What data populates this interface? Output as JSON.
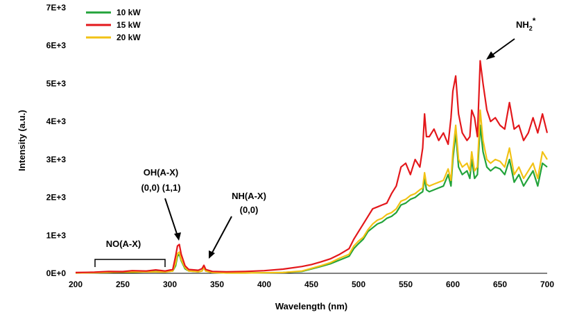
{
  "chart_data": {
    "type": "line",
    "title": "",
    "xlabel": "Wavelength (nm)",
    "ylabel": "Intensity (a.u.)",
    "xlim": [
      200,
      700
    ],
    "ylim": [
      0,
      7000
    ],
    "x_ticks": [
      "200",
      "250",
      "300",
      "350",
      "400",
      "450",
      "500",
      "550",
      "600",
      "650",
      "700"
    ],
    "y_ticks": [
      "0E+0",
      "1E+3",
      "2E+3",
      "3E+3",
      "4E+3",
      "5E+3",
      "6E+3",
      "7E+3"
    ],
    "grid": false,
    "legend": "top-left",
    "series": [
      {
        "name": "10 kW",
        "color": "#22a33a",
        "points": [
          [
            200,
            10
          ],
          [
            220,
            15
          ],
          [
            240,
            30
          ],
          [
            260,
            30
          ],
          [
            280,
            45
          ],
          [
            295,
            40
          ],
          [
            303,
            60
          ],
          [
            306,
            200
          ],
          [
            308,
            450
          ],
          [
            310,
            500
          ],
          [
            312,
            330
          ],
          [
            316,
            120
          ],
          [
            320,
            60
          ],
          [
            330,
            40
          ],
          [
            334,
            60
          ],
          [
            336,
            150
          ],
          [
            338,
            60
          ],
          [
            345,
            20
          ],
          [
            360,
            10
          ],
          [
            380,
            10
          ],
          [
            400,
            15
          ],
          [
            420,
            20
          ],
          [
            440,
            50
          ],
          [
            460,
            180
          ],
          [
            470,
            250
          ],
          [
            480,
            350
          ],
          [
            490,
            450
          ],
          [
            495,
            650
          ],
          [
            500,
            780
          ],
          [
            505,
            900
          ],
          [
            510,
            1100
          ],
          [
            515,
            1200
          ],
          [
            520,
            1300
          ],
          [
            525,
            1350
          ],
          [
            530,
            1450
          ],
          [
            535,
            1500
          ],
          [
            540,
            1600
          ],
          [
            545,
            1800
          ],
          [
            550,
            1850
          ],
          [
            555,
            1950
          ],
          [
            560,
            2000
          ],
          [
            565,
            2100
          ],
          [
            568,
            2150
          ],
          [
            570,
            2500
          ],
          [
            572,
            2200
          ],
          [
            575,
            2150
          ],
          [
            580,
            2200
          ],
          [
            585,
            2250
          ],
          [
            590,
            2300
          ],
          [
            595,
            2600
          ],
          [
            598,
            2300
          ],
          [
            600,
            3000
          ],
          [
            603,
            3700
          ],
          [
            606,
            2800
          ],
          [
            610,
            2600
          ],
          [
            615,
            2700
          ],
          [
            618,
            2500
          ],
          [
            620,
            3000
          ],
          [
            623,
            2500
          ],
          [
            626,
            2600
          ],
          [
            629,
            3900
          ],
          [
            632,
            3200
          ],
          [
            636,
            2800
          ],
          [
            640,
            2700
          ],
          [
            645,
            2800
          ],
          [
            650,
            2750
          ],
          [
            655,
            2600
          ],
          [
            660,
            3000
          ],
          [
            665,
            2400
          ],
          [
            670,
            2600
          ],
          [
            675,
            2300
          ],
          [
            680,
            2500
          ],
          [
            685,
            2700
          ],
          [
            690,
            2300
          ],
          [
            695,
            2900
          ],
          [
            700,
            2800
          ]
        ]
      },
      {
        "name": "15 kW",
        "color": "#e3171b",
        "points": [
          [
            200,
            20
          ],
          [
            220,
            30
          ],
          [
            235,
            50
          ],
          [
            250,
            45
          ],
          [
            260,
            70
          ],
          [
            275,
            60
          ],
          [
            285,
            90
          ],
          [
            295,
            60
          ],
          [
            303,
            100
          ],
          [
            306,
            450
          ],
          [
            308,
            720
          ],
          [
            310,
            760
          ],
          [
            312,
            500
          ],
          [
            316,
            200
          ],
          [
            320,
            100
          ],
          [
            330,
            80
          ],
          [
            334,
            120
          ],
          [
            336,
            210
          ],
          [
            338,
            100
          ],
          [
            345,
            50
          ],
          [
            360,
            40
          ],
          [
            380,
            50
          ],
          [
            400,
            70
          ],
          [
            420,
            110
          ],
          [
            440,
            180
          ],
          [
            450,
            230
          ],
          [
            460,
            300
          ],
          [
            470,
            380
          ],
          [
            480,
            500
          ],
          [
            490,
            650
          ],
          [
            495,
            900
          ],
          [
            500,
            1100
          ],
          [
            505,
            1300
          ],
          [
            510,
            1500
          ],
          [
            515,
            1700
          ],
          [
            520,
            1750
          ],
          [
            525,
            1800
          ],
          [
            530,
            1850
          ],
          [
            535,
            2100
          ],
          [
            540,
            2300
          ],
          [
            545,
            2800
          ],
          [
            550,
            2900
          ],
          [
            555,
            2600
          ],
          [
            560,
            3000
          ],
          [
            565,
            2800
          ],
          [
            568,
            3300
          ],
          [
            570,
            4200
          ],
          [
            572,
            3600
          ],
          [
            575,
            3600
          ],
          [
            580,
            3800
          ],
          [
            585,
            3500
          ],
          [
            590,
            3700
          ],
          [
            595,
            3400
          ],
          [
            598,
            4100
          ],
          [
            600,
            4800
          ],
          [
            603,
            5200
          ],
          [
            606,
            4200
          ],
          [
            610,
            3700
          ],
          [
            615,
            3500
          ],
          [
            618,
            3600
          ],
          [
            620,
            4300
          ],
          [
            623,
            4100
          ],
          [
            626,
            3600
          ],
          [
            629,
            5600
          ],
          [
            632,
            5000
          ],
          [
            636,
            4300
          ],
          [
            640,
            4000
          ],
          [
            645,
            4100
          ],
          [
            650,
            3900
          ],
          [
            655,
            3800
          ],
          [
            660,
            4500
          ],
          [
            665,
            3800
          ],
          [
            670,
            3900
          ],
          [
            675,
            3500
          ],
          [
            680,
            3700
          ],
          [
            685,
            4100
          ],
          [
            690,
            3700
          ],
          [
            695,
            4200
          ],
          [
            700,
            3700
          ]
        ]
      },
      {
        "name": "20 kW",
        "color": "#f2c214",
        "points": [
          [
            200,
            10
          ],
          [
            220,
            15
          ],
          [
            240,
            30
          ],
          [
            260,
            35
          ],
          [
            280,
            40
          ],
          [
            295,
            35
          ],
          [
            303,
            60
          ],
          [
            306,
            260
          ],
          [
            308,
            520
          ],
          [
            310,
            560
          ],
          [
            312,
            360
          ],
          [
            316,
            150
          ],
          [
            320,
            60
          ],
          [
            330,
            40
          ],
          [
            334,
            60
          ],
          [
            336,
            160
          ],
          [
            338,
            60
          ],
          [
            345,
            20
          ],
          [
            360,
            10
          ],
          [
            380,
            10
          ],
          [
            400,
            15
          ],
          [
            420,
            20
          ],
          [
            440,
            60
          ],
          [
            460,
            200
          ],
          [
            470,
            280
          ],
          [
            480,
            400
          ],
          [
            490,
            500
          ],
          [
            495,
            720
          ],
          [
            500,
            850
          ],
          [
            505,
            950
          ],
          [
            510,
            1150
          ],
          [
            515,
            1300
          ],
          [
            520,
            1400
          ],
          [
            525,
            1450
          ],
          [
            530,
            1550
          ],
          [
            535,
            1600
          ],
          [
            540,
            1700
          ],
          [
            545,
            1900
          ],
          [
            550,
            1950
          ],
          [
            555,
            2050
          ],
          [
            560,
            2100
          ],
          [
            565,
            2200
          ],
          [
            568,
            2250
          ],
          [
            570,
            2650
          ],
          [
            572,
            2350
          ],
          [
            575,
            2300
          ],
          [
            580,
            2350
          ],
          [
            585,
            2400
          ],
          [
            590,
            2450
          ],
          [
            595,
            2750
          ],
          [
            598,
            2450
          ],
          [
            600,
            3200
          ],
          [
            603,
            3900
          ],
          [
            606,
            3000
          ],
          [
            610,
            2800
          ],
          [
            615,
            2900
          ],
          [
            618,
            2700
          ],
          [
            620,
            3200
          ],
          [
            623,
            2700
          ],
          [
            626,
            2800
          ],
          [
            629,
            4300
          ],
          [
            632,
            3500
          ],
          [
            636,
            3000
          ],
          [
            640,
            2900
          ],
          [
            645,
            3000
          ],
          [
            650,
            2950
          ],
          [
            655,
            2800
          ],
          [
            660,
            3300
          ],
          [
            665,
            2600
          ],
          [
            670,
            2800
          ],
          [
            675,
            2500
          ],
          [
            680,
            2700
          ],
          [
            685,
            2900
          ],
          [
            690,
            2500
          ],
          [
            695,
            3200
          ],
          [
            700,
            3000
          ]
        ]
      }
    ],
    "annotations": [
      {
        "id": "nh2",
        "lines": [
          "NH",
          "2",
          "*"
        ]
      },
      {
        "id": "oh",
        "lines": [
          "OH(A-X)",
          "(0,0) (1,1)"
        ]
      },
      {
        "id": "nh",
        "lines": [
          "NH(A-X)",
          "(0,0)"
        ]
      },
      {
        "id": "no",
        "lines": [
          "NO(A-X)"
        ]
      }
    ]
  }
}
